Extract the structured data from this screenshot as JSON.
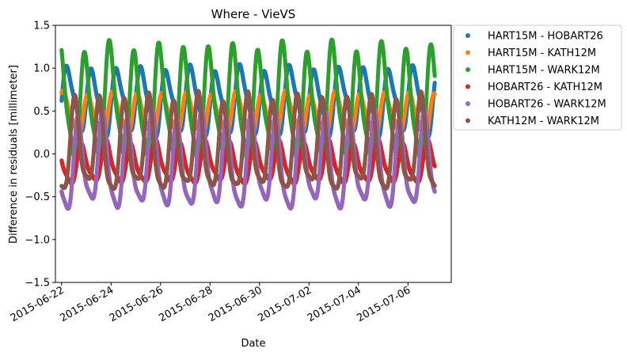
{
  "chart_data": {
    "type": "scatter",
    "title": "Where - VieVS",
    "xlabel": "Date",
    "ylabel": "Difference in residuals [millimeter]",
    "xlim": [
      "2015-06-21T18:00",
      "2015-07-07T18:00"
    ],
    "ylim": [
      -1.5,
      1.5
    ],
    "x_ticks": [
      "2015-06-22",
      "2015-06-24",
      "2015-06-26",
      "2015-06-28",
      "2015-06-30",
      "2015-07-02",
      "2015-07-04",
      "2015-07-06"
    ],
    "y_ticks": [
      -1.5,
      -1.0,
      -0.5,
      0.0,
      0.5,
      1.0,
      1.5
    ],
    "y_tick_labels": [
      "−1.5",
      "−1.0",
      "−0.5",
      "0.0",
      "0.5",
      "1.0",
      "1.5"
    ],
    "data_start": "2015-06-22T00:00",
    "data_end": "2015-07-07T02:00",
    "grid": false,
    "legend_position": "outside-right-top",
    "series": [
      {
        "name": "HART15M - HOBART26",
        "color": "#1f77b4",
        "diurnal_center": 0.62,
        "diurnal_amplitude": 0.35
      },
      {
        "name": "HART15M - KATH12M",
        "color": "#ff7f0e",
        "diurnal_center": 0.45,
        "diurnal_amplitude": 0.23
      },
      {
        "name": "HART15M - WARK12M",
        "color": "#2ca02c",
        "diurnal_center": 0.55,
        "diurnal_amplitude": 0.6
      },
      {
        "name": "HOBART26 - KATH12M",
        "color": "#d62728",
        "diurnal_center": -0.12,
        "diurnal_amplitude": 0.22
      },
      {
        "name": "HOBART26 - WARK12M",
        "color": "#9467bd",
        "diurnal_center": -0.15,
        "diurnal_amplitude": 0.5
      },
      {
        "name": "KATH12M - WARK12M",
        "color": "#8c564b",
        "diurnal_center": 0.05,
        "diurnal_amplitude": 0.5
      }
    ]
  }
}
